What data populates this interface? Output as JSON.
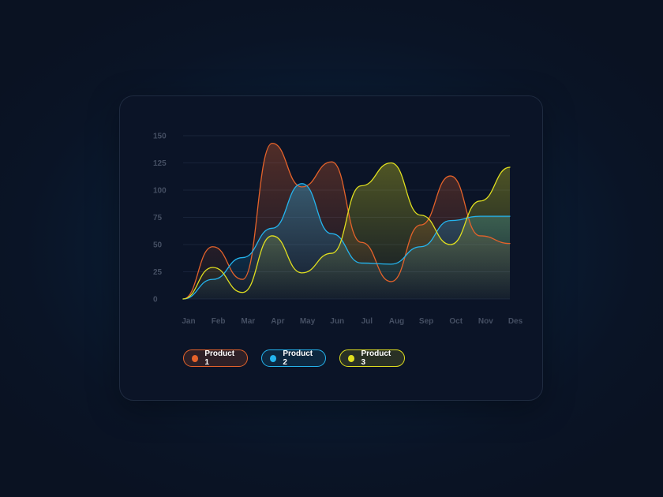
{
  "chart_data": {
    "type": "area",
    "categories": [
      "Jan",
      "Feb",
      "Mar",
      "Apr",
      "May",
      "Jun",
      "Jul",
      "Aug",
      "Sep",
      "Oct",
      "Nov",
      "Des"
    ],
    "yticks": [
      0,
      25,
      50,
      75,
      100,
      125,
      150
    ],
    "ylim": [
      0,
      150
    ],
    "grid": true,
    "legend_position": "bottom-left",
    "series": [
      {
        "name": "Product 1",
        "color": "#e4622a",
        "values": [
          0,
          48,
          18,
          143,
          103,
          126,
          52,
          16,
          68,
          113,
          58,
          51
        ]
      },
      {
        "name": "Product 2",
        "color": "#24b4ee",
        "values": [
          0,
          18,
          38,
          65,
          106,
          60,
          33,
          32,
          48,
          72,
          76,
          76
        ]
      },
      {
        "name": "Product 3",
        "color": "#e0df1f",
        "values": [
          0,
          29,
          6,
          58,
          24,
          42,
          104,
          125,
          77,
          50,
          90,
          121
        ]
      }
    ]
  }
}
